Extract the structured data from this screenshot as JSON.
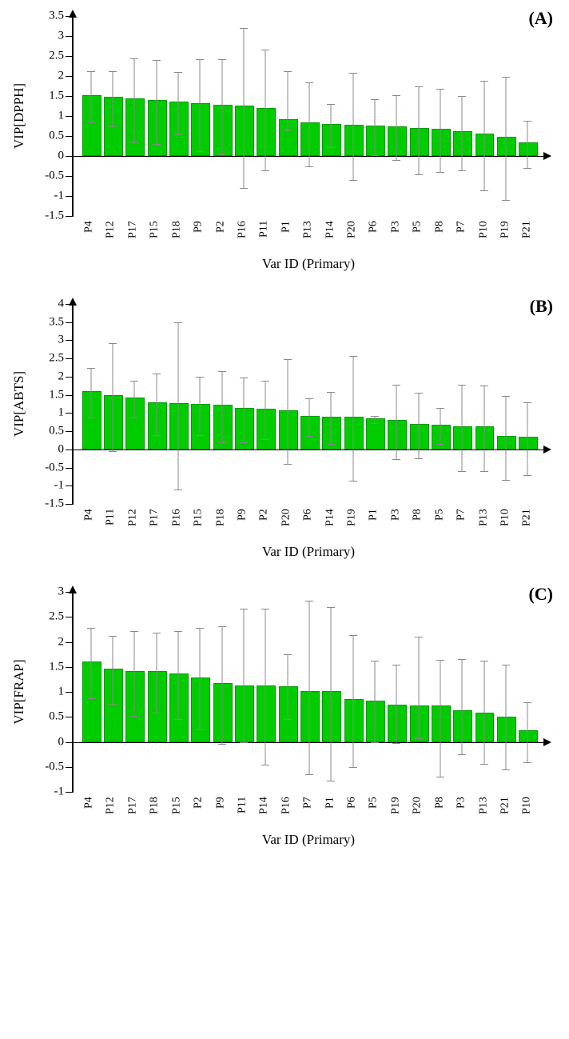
{
  "panels": [
    {
      "label": "(A)",
      "y_title": "VIP[DPPH]",
      "x_title": "Var ID (Primary)",
      "ylim": [
        -1.5,
        3.5
      ],
      "ytick_step": 0.5,
      "bar_color": "#00cc00",
      "bar_edge": "#009900",
      "err_color": "#888888",
      "background_color": "#ffffff",
      "title_fontsize": 22,
      "label_fontsize": 17,
      "tick_fontsize": 15,
      "categories": [
        "P4",
        "P12",
        "P17",
        "P15",
        "P18",
        "P9",
        "P2",
        "P16",
        "P11",
        "P1",
        "P13",
        "P14",
        "P20",
        "P6",
        "P3",
        "P5",
        "P8",
        "P7",
        "P10",
        "P19",
        "P21"
      ],
      "values": [
        1.48,
        1.44,
        1.4,
        1.36,
        1.32,
        1.28,
        1.24,
        1.22,
        1.16,
        0.88,
        0.8,
        0.76,
        0.74,
        0.72,
        0.7,
        0.66,
        0.64,
        0.58,
        0.52,
        0.44,
        0.3
      ],
      "err_low": [
        0.85,
        0.75,
        0.35,
        0.3,
        0.55,
        0.12,
        0.05,
        -0.8,
        -0.35,
        0.64,
        -0.26,
        0.23,
        -0.6,
        0.03,
        -0.1,
        -0.45,
        -0.4,
        -0.35,
        -0.85,
        -1.1,
        -0.3
      ],
      "err_high": [
        2.12,
        2.12,
        2.44,
        2.4,
        2.1,
        2.42,
        2.42,
        3.2,
        2.66,
        2.12,
        1.85,
        1.3,
        2.08,
        1.42,
        1.52,
        1.75,
        1.68,
        1.5,
        1.88,
        1.98,
        0.88
      ]
    },
    {
      "label": "(B)",
      "y_title": "VIP[ABTS]",
      "x_title": "Var ID (Primary)",
      "ylim": [
        -1.5,
        4.0
      ],
      "ytick_step": 0.5,
      "bar_color": "#00cc00",
      "bar_edge": "#009900",
      "err_color": "#888888",
      "background_color": "#ffffff",
      "title_fontsize": 22,
      "label_fontsize": 17,
      "tick_fontsize": 15,
      "categories": [
        "P4",
        "P11",
        "P12",
        "P17",
        "P16",
        "P15",
        "P18",
        "P9",
        "P2",
        "P20",
        "P6",
        "P14",
        "P19",
        "P1",
        "P3",
        "P8",
        "P5",
        "P7",
        "P13",
        "P10",
        "P21"
      ],
      "values": [
        1.56,
        1.44,
        1.38,
        1.24,
        1.22,
        1.2,
        1.18,
        1.1,
        1.08,
        1.02,
        0.88,
        0.86,
        0.86,
        0.82,
        0.76,
        0.66,
        0.64,
        0.6,
        0.58,
        0.32,
        0.3
      ],
      "err_low": [
        0.88,
        -0.05,
        0.88,
        0.4,
        -1.1,
        0.4,
        0.2,
        0.2,
        0.28,
        -0.4,
        0.38,
        0.14,
        -0.87,
        0.72,
        -0.26,
        -0.25,
        0.14,
        -0.6,
        -0.6,
        -0.85,
        -0.7
      ],
      "err_high": [
        2.25,
        2.92,
        1.88,
        2.08,
        3.5,
        2.0,
        2.15,
        1.98,
        1.88,
        2.48,
        1.4,
        1.58,
        2.58,
        0.92,
        1.78,
        1.55,
        1.14,
        1.78,
        1.75,
        1.48,
        1.3
      ]
    },
    {
      "label": "(C)",
      "y_title": "VIP[FRAP]",
      "x_title": "Var ID (Primary)",
      "ylim": [
        -1.0,
        3.0
      ],
      "ytick_step": 0.5,
      "bar_color": "#00cc00",
      "bar_edge": "#009900",
      "err_color": "#888888",
      "background_color": "#ffffff",
      "title_fontsize": 22,
      "label_fontsize": 17,
      "tick_fontsize": 15,
      "categories": [
        "P4",
        "P12",
        "P17",
        "P18",
        "P15",
        "P2",
        "P9",
        "P11",
        "P14",
        "P16",
        "P7",
        "P1",
        "P6",
        "P5",
        "P19",
        "P20",
        "P8",
        "P3",
        "P13",
        "P21",
        "P10"
      ],
      "values": [
        1.58,
        1.44,
        1.38,
        1.38,
        1.34,
        1.26,
        1.14,
        1.1,
        1.1,
        1.08,
        0.98,
        0.98,
        0.82,
        0.8,
        0.72,
        0.7,
        0.7,
        0.6,
        0.56,
        0.48,
        0.2
      ],
      "err_low": [
        0.88,
        0.76,
        0.52,
        0.58,
        0.46,
        0.25,
        -0.04,
        0.0,
        -0.46,
        0.45,
        -0.64,
        -0.78,
        -0.5,
        0.0,
        -0.02,
        0.08,
        -0.7,
        -0.25,
        -0.44,
        -0.55,
        -0.4
      ],
      "err_high": [
        2.28,
        2.12,
        2.22,
        2.18,
        2.22,
        2.28,
        2.32,
        2.66,
        2.66,
        1.75,
        2.82,
        2.7,
        2.14,
        1.62,
        1.55,
        2.1,
        1.64,
        1.65,
        1.62,
        1.55,
        0.8
      ]
    }
  ]
}
